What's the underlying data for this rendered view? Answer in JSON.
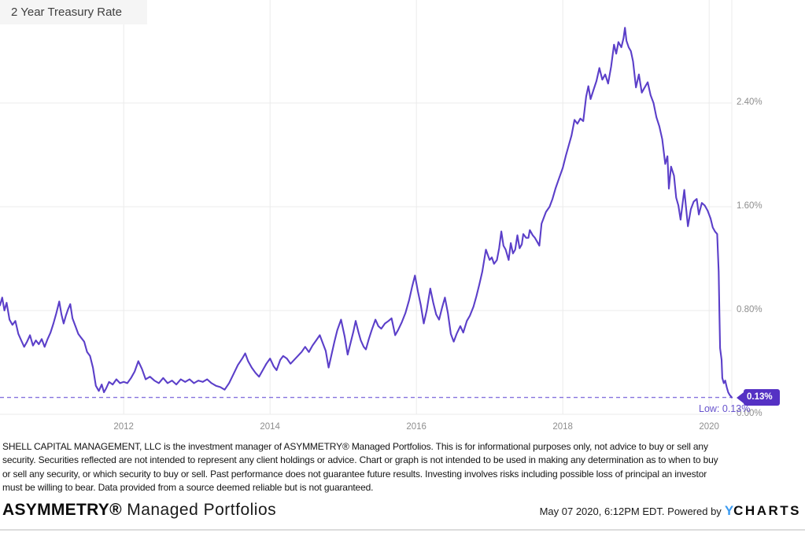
{
  "chart_data": {
    "type": "line",
    "title": "2 Year Treasury Rate",
    "legend": "none",
    "grid": true,
    "x_range": [
      2010.31,
      2020.31
    ],
    "y_range": [
      0,
      3.194
    ],
    "x_ticks": [
      {
        "label": "2012",
        "value": 2012
      },
      {
        "label": "2014",
        "value": 2014
      },
      {
        "label": "2016",
        "value": 2016
      },
      {
        "label": "2018",
        "value": 2018
      },
      {
        "label": "2020",
        "value": 2020
      }
    ],
    "y_ticks": [
      {
        "label": "2.40%",
        "value": 2.4
      },
      {
        "label": "1.60%",
        "value": 1.6
      },
      {
        "label": "0.80%",
        "value": 0.8
      },
      {
        "label": "0.00%",
        "value": 0
      }
    ],
    "annotations": {
      "low_line_value": 0.13,
      "low_label": "Low: 0.13%",
      "last_value_label": "0.13%"
    },
    "series": [
      {
        "name": "2 Year Treasury Rate",
        "color": "#5b3fc9",
        "points": [
          [
            2010.31,
            0.84
          ],
          [
            2010.34,
            0.9
          ],
          [
            2010.37,
            0.8
          ],
          [
            2010.4,
            0.86
          ],
          [
            2010.44,
            0.73
          ],
          [
            2010.48,
            0.69
          ],
          [
            2010.52,
            0.72
          ],
          [
            2010.56,
            0.62
          ],
          [
            2010.6,
            0.57
          ],
          [
            2010.64,
            0.52
          ],
          [
            2010.68,
            0.56
          ],
          [
            2010.72,
            0.61
          ],
          [
            2010.76,
            0.53
          ],
          [
            2010.8,
            0.57
          ],
          [
            2010.84,
            0.54
          ],
          [
            2010.88,
            0.58
          ],
          [
            2010.92,
            0.52
          ],
          [
            2010.96,
            0.58
          ],
          [
            2011.0,
            0.63
          ],
          [
            2011.04,
            0.7
          ],
          [
            2011.08,
            0.78
          ],
          [
            2011.12,
            0.87
          ],
          [
            2011.15,
            0.77
          ],
          [
            2011.18,
            0.7
          ],
          [
            2011.21,
            0.76
          ],
          [
            2011.24,
            0.81
          ],
          [
            2011.27,
            0.85
          ],
          [
            2011.3,
            0.74
          ],
          [
            2011.34,
            0.68
          ],
          [
            2011.38,
            0.62
          ],
          [
            2011.42,
            0.59
          ],
          [
            2011.46,
            0.56
          ],
          [
            2011.5,
            0.48
          ],
          [
            2011.54,
            0.45
          ],
          [
            2011.58,
            0.36
          ],
          [
            2011.62,
            0.22
          ],
          [
            2011.66,
            0.18
          ],
          [
            2011.7,
            0.23
          ],
          [
            2011.73,
            0.17
          ],
          [
            2011.76,
            0.2
          ],
          [
            2011.8,
            0.25
          ],
          [
            2011.85,
            0.23
          ],
          [
            2011.9,
            0.27
          ],
          [
            2011.95,
            0.24
          ],
          [
            2012.0,
            0.25
          ],
          [
            2012.05,
            0.24
          ],
          [
            2012.1,
            0.28
          ],
          [
            2012.15,
            0.33
          ],
          [
            2012.2,
            0.41
          ],
          [
            2012.25,
            0.35
          ],
          [
            2012.3,
            0.27
          ],
          [
            2012.36,
            0.29
          ],
          [
            2012.42,
            0.26
          ],
          [
            2012.48,
            0.24
          ],
          [
            2012.54,
            0.28
          ],
          [
            2012.6,
            0.24
          ],
          [
            2012.66,
            0.26
          ],
          [
            2012.72,
            0.23
          ],
          [
            2012.78,
            0.27
          ],
          [
            2012.84,
            0.25
          ],
          [
            2012.9,
            0.27
          ],
          [
            2012.96,
            0.24
          ],
          [
            2013.02,
            0.26
          ],
          [
            2013.08,
            0.25
          ],
          [
            2013.14,
            0.27
          ],
          [
            2013.2,
            0.24
          ],
          [
            2013.26,
            0.22
          ],
          [
            2013.32,
            0.21
          ],
          [
            2013.38,
            0.19
          ],
          [
            2013.44,
            0.24
          ],
          [
            2013.5,
            0.31
          ],
          [
            2013.56,
            0.38
          ],
          [
            2013.62,
            0.43
          ],
          [
            2013.66,
            0.47
          ],
          [
            2013.7,
            0.41
          ],
          [
            2013.75,
            0.36
          ],
          [
            2013.8,
            0.32
          ],
          [
            2013.85,
            0.29
          ],
          [
            2013.9,
            0.34
          ],
          [
            2013.95,
            0.39
          ],
          [
            2014.0,
            0.43
          ],
          [
            2014.05,
            0.37
          ],
          [
            2014.09,
            0.34
          ],
          [
            2014.14,
            0.42
          ],
          [
            2014.18,
            0.45
          ],
          [
            2014.23,
            0.43
          ],
          [
            2014.28,
            0.39
          ],
          [
            2014.33,
            0.42
          ],
          [
            2014.38,
            0.45
          ],
          [
            2014.43,
            0.48
          ],
          [
            2014.48,
            0.52
          ],
          [
            2014.53,
            0.48
          ],
          [
            2014.58,
            0.53
          ],
          [
            2014.63,
            0.57
          ],
          [
            2014.68,
            0.61
          ],
          [
            2014.72,
            0.55
          ],
          [
            2014.76,
            0.49
          ],
          [
            2014.8,
            0.36
          ],
          [
            2014.84,
            0.46
          ],
          [
            2014.88,
            0.56
          ],
          [
            2014.92,
            0.65
          ],
          [
            2014.97,
            0.73
          ],
          [
            2015.02,
            0.6
          ],
          [
            2015.06,
            0.46
          ],
          [
            2015.1,
            0.55
          ],
          [
            2015.14,
            0.64
          ],
          [
            2015.17,
            0.72
          ],
          [
            2015.21,
            0.63
          ],
          [
            2015.24,
            0.57
          ],
          [
            2015.28,
            0.52
          ],
          [
            2015.31,
            0.5
          ],
          [
            2015.35,
            0.58
          ],
          [
            2015.39,
            0.65
          ],
          [
            2015.44,
            0.73
          ],
          [
            2015.48,
            0.68
          ],
          [
            2015.52,
            0.66
          ],
          [
            2015.57,
            0.7
          ],
          [
            2015.62,
            0.72
          ],
          [
            2015.66,
            0.74
          ],
          [
            2015.71,
            0.61
          ],
          [
            2015.75,
            0.65
          ],
          [
            2015.8,
            0.71
          ],
          [
            2015.85,
            0.78
          ],
          [
            2015.9,
            0.88
          ],
          [
            2015.94,
            0.98
          ],
          [
            2015.98,
            1.07
          ],
          [
            2016.02,
            0.95
          ],
          [
            2016.06,
            0.84
          ],
          [
            2016.1,
            0.7
          ],
          [
            2016.14,
            0.8
          ],
          [
            2016.19,
            0.97
          ],
          [
            2016.23,
            0.86
          ],
          [
            2016.27,
            0.77
          ],
          [
            2016.31,
            0.73
          ],
          [
            2016.35,
            0.82
          ],
          [
            2016.39,
            0.9
          ],
          [
            2016.43,
            0.78
          ],
          [
            2016.47,
            0.62
          ],
          [
            2016.51,
            0.56
          ],
          [
            2016.55,
            0.62
          ],
          [
            2016.6,
            0.68
          ],
          [
            2016.64,
            0.63
          ],
          [
            2016.69,
            0.72
          ],
          [
            2016.73,
            0.76
          ],
          [
            2016.78,
            0.83
          ],
          [
            2016.82,
            0.91
          ],
          [
            2016.86,
            1.0
          ],
          [
            2016.9,
            1.1
          ],
          [
            2016.95,
            1.27
          ],
          [
            2017.0,
            1.19
          ],
          [
            2017.03,
            1.21
          ],
          [
            2017.06,
            1.16
          ],
          [
            2017.1,
            1.19
          ],
          [
            2017.13,
            1.28
          ],
          [
            2017.16,
            1.41
          ],
          [
            2017.19,
            1.3
          ],
          [
            2017.22,
            1.27
          ],
          [
            2017.26,
            1.19
          ],
          [
            2017.29,
            1.32
          ],
          [
            2017.32,
            1.24
          ],
          [
            2017.35,
            1.27
          ],
          [
            2017.38,
            1.38
          ],
          [
            2017.41,
            1.28
          ],
          [
            2017.44,
            1.31
          ],
          [
            2017.46,
            1.39
          ],
          [
            2017.5,
            1.36
          ],
          [
            2017.53,
            1.36
          ],
          [
            2017.55,
            1.42
          ],
          [
            2017.59,
            1.38
          ],
          [
            2017.62,
            1.36
          ],
          [
            2017.66,
            1.32
          ],
          [
            2017.68,
            1.3
          ],
          [
            2017.71,
            1.47
          ],
          [
            2017.77,
            1.56
          ],
          [
            2017.82,
            1.6
          ],
          [
            2017.86,
            1.66
          ],
          [
            2017.9,
            1.74
          ],
          [
            2017.95,
            1.82
          ],
          [
            2018.0,
            1.9
          ],
          [
            2018.04,
            1.99
          ],
          [
            2018.08,
            2.07
          ],
          [
            2018.12,
            2.15
          ],
          [
            2018.16,
            2.27
          ],
          [
            2018.2,
            2.24
          ],
          [
            2018.24,
            2.28
          ],
          [
            2018.28,
            2.26
          ],
          [
            2018.32,
            2.45
          ],
          [
            2018.35,
            2.53
          ],
          [
            2018.38,
            2.43
          ],
          [
            2018.42,
            2.5
          ],
          [
            2018.46,
            2.57
          ],
          [
            2018.5,
            2.67
          ],
          [
            2018.54,
            2.58
          ],
          [
            2018.58,
            2.62
          ],
          [
            2018.62,
            2.55
          ],
          [
            2018.66,
            2.68
          ],
          [
            2018.7,
            2.85
          ],
          [
            2018.73,
            2.78
          ],
          [
            2018.76,
            2.87
          ],
          [
            2018.8,
            2.83
          ],
          [
            2018.83,
            2.9
          ],
          [
            2018.85,
            2.98
          ],
          [
            2018.87,
            2.88
          ],
          [
            2018.9,
            2.83
          ],
          [
            2018.93,
            2.8
          ],
          [
            2018.96,
            2.72
          ],
          [
            2019.0,
            2.52
          ],
          [
            2019.04,
            2.62
          ],
          [
            2019.08,
            2.48
          ],
          [
            2019.12,
            2.52
          ],
          [
            2019.16,
            2.56
          ],
          [
            2019.2,
            2.46
          ],
          [
            2019.24,
            2.4
          ],
          [
            2019.28,
            2.29
          ],
          [
            2019.32,
            2.22
          ],
          [
            2019.36,
            2.12
          ],
          [
            2019.4,
            1.93
          ],
          [
            2019.43,
            1.99
          ],
          [
            2019.45,
            1.74
          ],
          [
            2019.48,
            1.91
          ],
          [
            2019.52,
            1.84
          ],
          [
            2019.55,
            1.67
          ],
          [
            2019.58,
            1.61
          ],
          [
            2019.61,
            1.5
          ],
          [
            2019.66,
            1.73
          ],
          [
            2019.71,
            1.45
          ],
          [
            2019.75,
            1.58
          ],
          [
            2019.79,
            1.64
          ],
          [
            2019.83,
            1.66
          ],
          [
            2019.86,
            1.54
          ],
          [
            2019.9,
            1.63
          ],
          [
            2019.94,
            1.61
          ],
          [
            2019.98,
            1.57
          ],
          [
            2020.02,
            1.51
          ],
          [
            2020.05,
            1.44
          ],
          [
            2020.08,
            1.41
          ],
          [
            2020.11,
            1.39
          ],
          [
            2020.13,
            1.1
          ],
          [
            2020.14,
            0.79
          ],
          [
            2020.15,
            0.51
          ],
          [
            2020.17,
            0.42
          ],
          [
            2020.18,
            0.28
          ],
          [
            2020.2,
            0.24
          ],
          [
            2020.22,
            0.26
          ],
          [
            2020.24,
            0.21
          ],
          [
            2020.26,
            0.17
          ],
          [
            2020.28,
            0.15
          ],
          [
            2020.31,
            0.13
          ]
        ]
      }
    ]
  },
  "colors": {
    "line": "#5b3fc9",
    "low_dash": "#8672de",
    "badge_bg": "#5531c4",
    "badge_text": "#ffffff",
    "grid": "#ebebeb",
    "axis_text": "#8e8e8e",
    "ycharts_blue": "#3b9af0"
  },
  "footer": {
    "disclaimer_lines": [
      "SHELL CAPITAL MANAGEMENT, LLC is the investment manager of ASYMMETRY® Managed Portfolios. This is for informational purposes only, not advice to buy or sell any",
      "security. Securities reflected are not intended to represent any client holdings or advice. Chart or graph is not intended to be used in making any determination as to when to buy",
      "or sell any security, or which security to buy or sell. Past performance does not guarantee future results. Investing involves risks including possible loss of principal an investor",
      "must be willing to bear. Data provided from a source deemed reliable but is not guaranteed."
    ],
    "brand_bold": "ASYMMETRY®",
    "brand_regular": " Managed Portfolios",
    "timestamp": "May 07 2020, 6:12PM EDT. Powered by",
    "ycharts_y": "Y",
    "ycharts_rest": "CHARTS"
  }
}
